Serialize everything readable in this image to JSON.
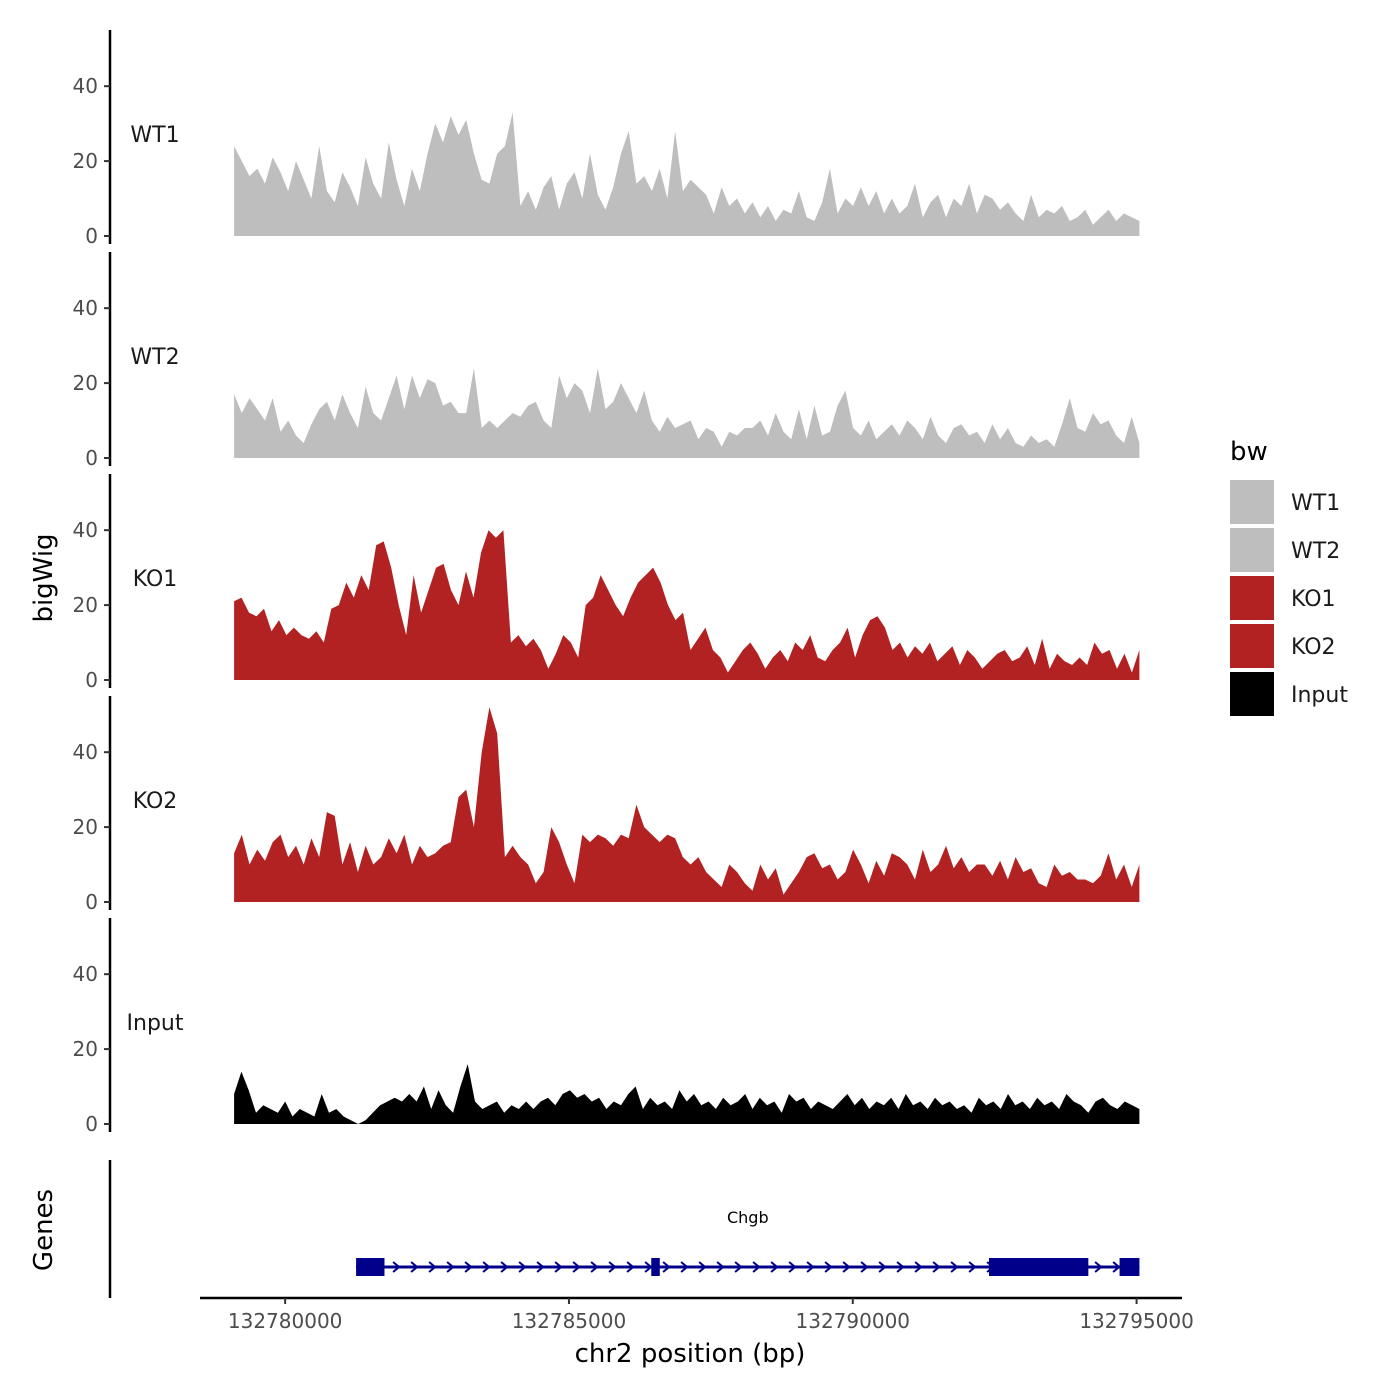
{
  "chart_data": {
    "type": "area",
    "ylabel": "bigWig",
    "xlabel": "chr2 position (bp)",
    "xlim": [
      132778500,
      132795800
    ],
    "ylim": [
      0,
      55
    ],
    "y_ticks": [
      0,
      20,
      40
    ],
    "x_ticks": [
      132780000,
      132785000,
      132790000,
      132795000
    ],
    "x_tick_labels": [
      "132780000",
      "132785000",
      "132790000",
      "132795000"
    ],
    "x_start": 132779100,
    "x_end": 132795050,
    "legend": {
      "title": "bw",
      "entries": [
        {
          "label": "WT1",
          "color": "#bebebe"
        },
        {
          "label": "WT2",
          "color": "#bebebe"
        },
        {
          "label": "KO1",
          "color": "#b22222"
        },
        {
          "label": "KO2",
          "color": "#b22222"
        },
        {
          "label": "Input",
          "color": "#000000"
        }
      ]
    },
    "series": [
      {
        "name": "WT1",
        "color": "#bebebe",
        "values": [
          24,
          20,
          16,
          18,
          14,
          21,
          17,
          12,
          20,
          15,
          10,
          24,
          12,
          9,
          17,
          13,
          8,
          21,
          14,
          10,
          25,
          15,
          8,
          18,
          12,
          22,
          30,
          25,
          32,
          27,
          31,
          22,
          15,
          14,
          22,
          24,
          33,
          8,
          12,
          7,
          13,
          16,
          7,
          14,
          17,
          10,
          22,
          11,
          7,
          13,
          22,
          28,
          14,
          16,
          12,
          18,
          10,
          28,
          12,
          15,
          13,
          11,
          6,
          13,
          8,
          10,
          6,
          9,
          5,
          8,
          4,
          7,
          6,
          12,
          5,
          4,
          9,
          18,
          6,
          10,
          8,
          13,
          8,
          12,
          6,
          10,
          6,
          8,
          14,
          5,
          9,
          11,
          5,
          10,
          8,
          14,
          6,
          11,
          10,
          7,
          9,
          6,
          4,
          11,
          5,
          7,
          6,
          8,
          4,
          5,
          7,
          3,
          5,
          7,
          4,
          6,
          5,
          4
        ]
      },
      {
        "name": "WT2",
        "color": "#bebebe",
        "values": [
          17,
          12,
          16,
          13,
          10,
          16,
          7,
          10,
          6,
          4,
          9,
          13,
          15,
          10,
          17,
          12,
          8,
          19,
          12,
          10,
          16,
          22,
          13,
          22,
          16,
          21,
          20,
          14,
          15,
          12,
          12,
          24,
          8,
          10,
          8,
          10,
          12,
          11,
          14,
          15,
          10,
          8,
          22,
          16,
          20,
          18,
          12,
          24,
          13,
          15,
          20,
          16,
          12,
          18,
          10,
          7,
          11,
          8,
          9,
          10,
          5,
          8,
          7,
          3,
          7,
          6,
          8,
          8,
          10,
          6,
          12,
          7,
          5,
          13,
          5,
          14,
          6,
          7,
          14,
          18,
          8,
          6,
          10,
          5,
          7,
          9,
          6,
          10,
          8,
          5,
          11,
          6,
          4,
          8,
          9,
          6,
          7,
          4,
          9,
          5,
          8,
          4,
          3,
          6,
          4,
          5,
          3,
          9,
          16,
          8,
          7,
          12,
          9,
          10,
          6,
          4,
          11,
          4
        ]
      },
      {
        "name": "KO1",
        "color": "#b22222",
        "values": [
          21,
          22,
          18,
          17,
          19,
          13,
          16,
          12,
          14,
          12,
          11,
          13,
          10,
          19,
          20,
          26,
          22,
          28,
          24,
          36,
          37,
          30,
          20,
          12,
          28,
          18,
          24,
          30,
          31,
          24,
          20,
          29,
          22,
          34,
          40,
          38,
          40,
          10,
          12,
          9,
          11,
          8,
          3,
          7,
          12,
          10,
          6,
          20,
          22,
          28,
          24,
          20,
          17,
          22,
          26,
          28,
          30,
          26,
          20,
          16,
          18,
          8,
          11,
          14,
          8,
          6,
          2,
          5,
          8,
          10,
          7,
          3,
          6,
          8,
          5,
          10,
          8,
          12,
          6,
          5,
          8,
          10,
          14,
          6,
          12,
          16,
          17,
          14,
          8,
          10,
          6,
          9,
          7,
          10,
          5,
          7,
          9,
          4,
          8,
          6,
          3,
          5,
          7,
          8,
          5,
          6,
          9,
          4,
          11,
          3,
          7,
          5,
          4,
          6,
          4,
          10,
          7,
          8,
          3,
          7,
          2,
          8
        ]
      },
      {
        "name": "KO2",
        "color": "#b22222",
        "values": [
          13,
          18,
          10,
          14,
          11,
          16,
          18,
          12,
          15,
          10,
          17,
          12,
          24,
          23,
          10,
          16,
          8,
          15,
          10,
          12,
          17,
          13,
          18,
          10,
          15,
          12,
          13,
          15,
          16,
          28,
          30,
          20,
          40,
          52,
          45,
          12,
          15,
          12,
          10,
          5,
          8,
          20,
          16,
          10,
          5,
          18,
          16,
          18,
          17,
          15,
          18,
          17,
          26,
          20,
          18,
          16,
          18,
          17,
          12,
          10,
          12,
          8,
          6,
          4,
          10,
          8,
          5,
          3,
          10,
          6,
          9,
          2,
          5,
          8,
          12,
          13,
          9,
          10,
          6,
          8,
          14,
          10,
          5,
          11,
          7,
          13,
          12,
          10,
          6,
          14,
          8,
          10,
          15,
          9,
          12,
          8,
          10,
          10,
          7,
          11,
          6,
          12,
          8,
          9,
          5,
          4,
          10,
          7,
          8,
          6,
          6,
          5,
          7,
          13,
          6,
          10,
          4,
          10
        ]
      },
      {
        "name": "Input",
        "color": "#000000",
        "values": [
          8,
          14,
          9,
          3,
          5,
          4,
          3,
          6,
          2,
          4,
          3,
          2,
          8,
          3,
          4,
          2,
          1,
          0,
          1,
          3,
          5,
          6,
          7,
          6,
          8,
          6,
          10,
          4,
          9,
          5,
          3,
          10,
          16,
          6,
          4,
          5,
          6,
          3,
          5,
          4,
          6,
          4,
          6,
          7,
          5,
          8,
          9,
          7,
          8,
          6,
          7,
          4,
          6,
          5,
          8,
          10,
          4,
          7,
          5,
          6,
          4,
          9,
          6,
          8,
          5,
          6,
          4,
          7,
          5,
          6,
          8,
          4,
          7,
          5,
          6,
          3,
          8,
          6,
          7,
          4,
          6,
          5,
          4,
          6,
          8,
          5,
          7,
          4,
          6,
          5,
          7,
          4,
          8,
          5,
          6,
          4,
          7,
          5,
          6,
          4,
          5,
          3,
          7,
          5,
          6,
          4,
          8,
          5,
          6,
          4,
          7,
          5,
          6,
          4,
          8,
          6,
          5,
          3,
          6,
          7,
          5,
          4,
          6,
          5,
          4
        ]
      }
    ],
    "gene_track": {
      "label": "Genes",
      "gene_name": "Chgb",
      "strand": "+",
      "start": 132781250,
      "end": 132795050,
      "exons": [
        [
          132781250,
          132781750
        ],
        [
          132786450,
          132786600
        ],
        [
          132792400,
          132794150
        ],
        [
          132794700,
          132795050
        ]
      ],
      "color": "#00008b"
    }
  }
}
